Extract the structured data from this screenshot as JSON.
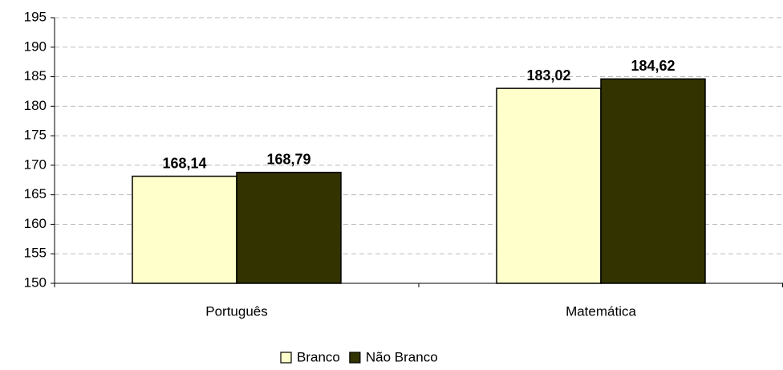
{
  "chart_data": {
    "type": "bar",
    "categories": [
      "Português",
      "Matemática"
    ],
    "series": [
      {
        "name": "Branco",
        "color": "#ffffcc",
        "values": [
          168.14,
          183.02
        ],
        "value_labels": [
          "168,14",
          "183,02"
        ]
      },
      {
        "name": "Não Branco",
        "color": "#333300",
        "values": [
          168.79,
          184.62
        ],
        "value_labels": [
          "168,79",
          "184,62"
        ]
      }
    ],
    "ylim": [
      150,
      195
    ],
    "yticks": [
      150,
      155,
      160,
      165,
      170,
      175,
      180,
      185,
      190,
      195
    ],
    "grid": true,
    "legend": "bottom"
  }
}
